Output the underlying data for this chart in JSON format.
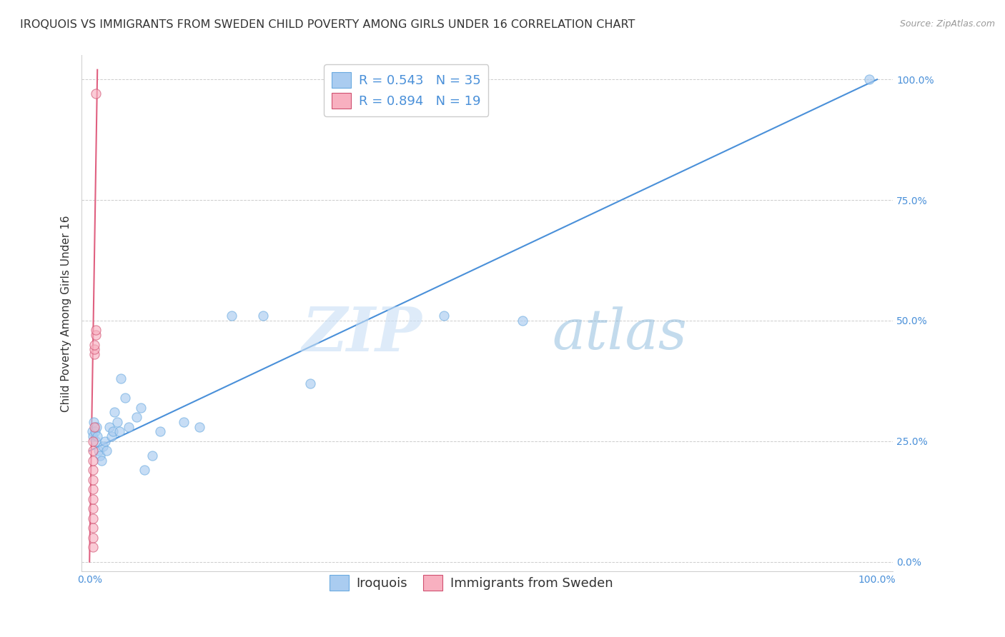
{
  "title": "IROQUOIS VS IMMIGRANTS FROM SWEDEN CHILD POVERTY AMONG GIRLS UNDER 16 CORRELATION CHART",
  "source": "Source: ZipAtlas.com",
  "ylabel": "Child Poverty Among Girls Under 16",
  "xlim": [
    -0.01,
    1.02
  ],
  "ylim": [
    -0.02,
    1.05
  ],
  "x_tick_labels": [
    "0.0%",
    "100.0%"
  ],
  "x_tick_positions": [
    0.0,
    1.0
  ],
  "y_tick_labels": [
    "0.0%",
    "25.0%",
    "50.0%",
    "75.0%",
    "100.0%"
  ],
  "y_tick_positions": [
    0.0,
    0.25,
    0.5,
    0.75,
    1.0
  ],
  "watermark_zip": "ZIP",
  "watermark_atlas": "atlas",
  "blue_R": "0.543",
  "blue_N": "35",
  "pink_R": "0.894",
  "pink_N": "19",
  "blue_color": "#aaccf0",
  "pink_color": "#f8b0c0",
  "blue_line_color": "#4a90d9",
  "pink_line_color": "#e06080",
  "blue_scatter_edge": "#6aaae0",
  "pink_scatter_edge": "#d05070",
  "blue_scatter_x": [
    0.003,
    0.004,
    0.005,
    0.007,
    0.008,
    0.009,
    0.01,
    0.012,
    0.013,
    0.015,
    0.017,
    0.02,
    0.022,
    0.025,
    0.028,
    0.03,
    0.032,
    0.035,
    0.038,
    0.04,
    0.045,
    0.05,
    0.06,
    0.065,
    0.07,
    0.08,
    0.09,
    0.12,
    0.14,
    0.18,
    0.22,
    0.28,
    0.45,
    0.55,
    0.99
  ],
  "blue_scatter_y": [
    0.27,
    0.26,
    0.29,
    0.27,
    0.25,
    0.28,
    0.26,
    0.23,
    0.22,
    0.21,
    0.24,
    0.25,
    0.23,
    0.28,
    0.26,
    0.27,
    0.31,
    0.29,
    0.27,
    0.38,
    0.34,
    0.28,
    0.3,
    0.32,
    0.19,
    0.22,
    0.27,
    0.29,
    0.28,
    0.51,
    0.51,
    0.37,
    0.51,
    0.5,
    1.0
  ],
  "pink_scatter_x": [
    0.004,
    0.004,
    0.004,
    0.004,
    0.004,
    0.004,
    0.004,
    0.004,
    0.004,
    0.004,
    0.004,
    0.004,
    0.006,
    0.006,
    0.006,
    0.006,
    0.008,
    0.008,
    0.008
  ],
  "pink_scatter_y": [
    0.03,
    0.05,
    0.07,
    0.09,
    0.11,
    0.13,
    0.15,
    0.17,
    0.19,
    0.21,
    0.23,
    0.25,
    0.28,
    0.43,
    0.44,
    0.45,
    0.47,
    0.48,
    0.97
  ],
  "blue_line_x": [
    0.0,
    1.0
  ],
  "blue_line_y": [
    0.23,
    1.0
  ],
  "pink_line_x": [
    0.0,
    0.01
  ],
  "pink_line_y": [
    0.0,
    1.02
  ],
  "background_color": "#ffffff",
  "grid_color": "#cccccc",
  "title_fontsize": 11.5,
  "axis_label_fontsize": 11,
  "tick_fontsize": 10,
  "legend_fontsize": 13,
  "source_fontsize": 9,
  "scatter_size": 90,
  "scatter_alpha": 0.65,
  "line_width": 1.5
}
